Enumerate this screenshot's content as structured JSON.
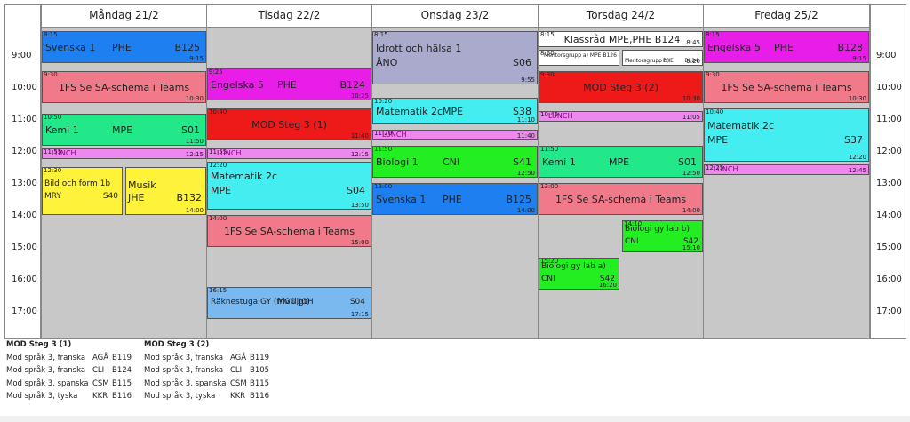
{
  "times": [
    "9:00",
    "10:00",
    "11:00",
    "12:00",
    "13:00",
    "14:00",
    "15:00",
    "16:00",
    "17:00"
  ],
  "colors": {
    "blue": "#1e7ff0",
    "magenta": "#e81ee8",
    "pink": "#f07a8a",
    "green_cyan": "#22e88a",
    "lunch": "#ee88ee",
    "yellow": "#fff23a",
    "red": "#ee1a1a",
    "cyan": "#44eef0",
    "lightblue": "#7ab8f0",
    "lavender": "#aaaacc",
    "green": "#22ee22",
    "white": "#ffffff"
  },
  "days": [
    {
      "title": "Måndag 21/2",
      "events": [
        {
          "start": "8:15",
          "end": "9:15",
          "name": "Svenska 1",
          "teacher": "PHE",
          "room": "B125",
          "color": "blue"
        },
        {
          "start": "9:30",
          "end": "10:30",
          "name": "1FS Se SA-schema i Teams",
          "color": "pink"
        },
        {
          "start": "10:50",
          "end": "11:50",
          "name": "Kemi 1",
          "teacher": "MPE",
          "room": "S01",
          "color": "green_cyan"
        },
        {
          "start": "11:55",
          "end": "12:15",
          "name": "LUNCH",
          "color": "lunch",
          "lunch": true
        },
        {
          "start": "12:30",
          "end": "",
          "name": "Bild och form 1b",
          "teacher": "MRY",
          "room": "S40",
          "color": "yellow",
          "half": "left",
          "small": true
        },
        {
          "start": "",
          "end": "14:00",
          "name": "Musik",
          "teacher": "JHE",
          "room": "B132",
          "color": "yellow",
          "half": "right"
        }
      ]
    },
    {
      "title": "Tisdag 22/2",
      "events": [
        {
          "start": "9:25",
          "end": "10:25",
          "name": "Engelska 5",
          "teacher": "PHE",
          "room": "B124",
          "color": "magenta"
        },
        {
          "start": "10:40",
          "end": "11:40",
          "name": "MOD Steg 3 (1)",
          "color": "red"
        },
        {
          "start": "11:55",
          "end": "12:15",
          "name": "LUNCH",
          "color": "lunch",
          "lunch": true
        },
        {
          "start": "12:20",
          "end": "13:50",
          "name": "Matematik 2c",
          "teacher": "MPE",
          "room": "S04",
          "color": "cyan"
        },
        {
          "start": "14:00",
          "end": "15:00",
          "name": "1FS Se SA-schema i Teams",
          "color": "pink"
        },
        {
          "start": "16:15",
          "end": "17:15",
          "name": "Räknestuga GY (frivilligt)",
          "teacher": "MGU,JOH",
          "room": "S04",
          "color": "lightblue",
          "small": true
        }
      ]
    },
    {
      "title": "Onsdag 23/2",
      "events": [
        {
          "start": "8:15",
          "end": "9:55",
          "name": "Idrott och hälsa 1",
          "teacher": "ÅNO",
          "room": "S06",
          "color": "lavender"
        },
        {
          "start": "10:20",
          "end": "11:10",
          "name": "Matematik 2c",
          "teacher": "MPE",
          "room": "S38",
          "color": "cyan"
        },
        {
          "start": "11:20",
          "end": "11:40",
          "name": "LUNCH",
          "color": "lunch",
          "lunch": true
        },
        {
          "start": "11:50",
          "end": "12:50",
          "name": "Biologi 1",
          "teacher": "CNI",
          "room": "S41",
          "color": "green"
        },
        {
          "start": "13:00",
          "end": "14:00",
          "name": "Svenska 1",
          "teacher": "PHE",
          "room": "B125",
          "color": "blue"
        }
      ]
    },
    {
      "title": "Torsdag 24/2",
      "events": [
        {
          "start": "8:15",
          "end": "8:45",
          "name": "Klassråd MPE,PHE B124",
          "color": "white"
        },
        {
          "start": "8:50",
          "end": "",
          "name": "Mentorsgrupp a) MPE B126",
          "color": "white",
          "half": "left",
          "tiny": true
        },
        {
          "start": "",
          "end": "9:20",
          "name": "Mentorsgrupp b)",
          "teacher": "PHE",
          "room": "B124",
          "color": "white",
          "half": "right",
          "tiny": true
        },
        {
          "start": "9:30",
          "end": "10:30",
          "name": "MOD Steg 3 (2)",
          "color": "red"
        },
        {
          "start": "10:45",
          "end": "11:05",
          "name": "LUNCH",
          "color": "lunch",
          "lunch": true
        },
        {
          "start": "11:50",
          "end": "12:50",
          "name": "Kemi 1",
          "teacher": "MPE",
          "room": "S01",
          "color": "green_cyan"
        },
        {
          "start": "13:00",
          "end": "14:00",
          "name": "1FS Se SA-schema i Teams",
          "color": "pink"
        },
        {
          "start": "14:10",
          "end": "15:10",
          "name": "Biologi gy lab b)",
          "teacher": "CNI",
          "room": "S42",
          "color": "green",
          "half": "right",
          "small": true
        },
        {
          "start": "15:20",
          "end": "16:20",
          "name": "Biologi gy lab a)",
          "teacher": "CNI",
          "room": "S42",
          "color": "green",
          "half": "left",
          "small": true
        }
      ]
    },
    {
      "title": "Fredag 25/2",
      "events": [
        {
          "start": "8:15",
          "end": "9:15",
          "name": "Engelska 5",
          "teacher": "PHE",
          "room": "B128",
          "color": "magenta"
        },
        {
          "start": "9:30",
          "end": "10:30",
          "name": "1FS Se SA-schema i Teams",
          "color": "pink"
        },
        {
          "start": "10:40",
          "end": "12:20",
          "name": "Matematik 2c",
          "teacher": "MPE",
          "room": "S37",
          "color": "cyan"
        },
        {
          "start": "12:25",
          "end": "12:45",
          "name": "LUNCH",
          "color": "lunch",
          "lunch": true
        }
      ]
    }
  ],
  "legend": [
    {
      "title": "MOD Steg 3 (1)",
      "rows": [
        {
          "course": "Mod språk 3, franska",
          "teacher": "AGÅ",
          "room": "B119"
        },
        {
          "course": "Mod språk 3, franska",
          "teacher": "CLI",
          "room": "B124"
        },
        {
          "course": "Mod språk 3, spanska",
          "teacher": "CSM",
          "room": "B115"
        },
        {
          "course": "Mod språk 3, tyska",
          "teacher": "KKR",
          "room": "B116"
        }
      ]
    },
    {
      "title": "MOD Steg 3 (2)",
      "rows": [
        {
          "course": "Mod språk 3, franska",
          "teacher": "AGÅ",
          "room": "B119"
        },
        {
          "course": "Mod språk 3, franska",
          "teacher": "CLI",
          "room": "B105"
        },
        {
          "course": "Mod språk 3, spanska",
          "teacher": "CSM",
          "room": "B115"
        },
        {
          "course": "Mod språk 3, tyska",
          "teacher": "KKR",
          "room": "B116"
        }
      ]
    }
  ]
}
